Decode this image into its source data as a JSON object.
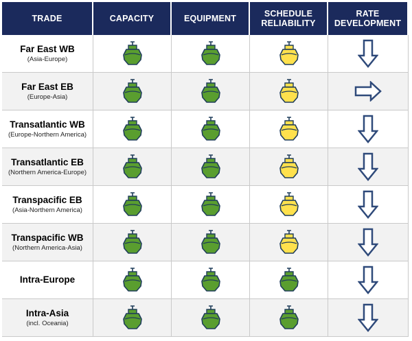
{
  "headers": {
    "trade": "TRADE",
    "capacity": "CAPACITY",
    "equipment": "EQUIPMENT",
    "schedule": "SCHEDULE RELIABILITY",
    "rate": "RATE DEVELOPMENT"
  },
  "rows": [
    {
      "name": "Far East WB",
      "sub": "(Asia-Europe)",
      "capacity": "green",
      "equipment": "green",
      "schedule": "yellow",
      "rate": "down"
    },
    {
      "name": "Far East EB",
      "sub": "(Europe-Asia)",
      "capacity": "green",
      "equipment": "green",
      "schedule": "yellow",
      "rate": "right"
    },
    {
      "name": "Transatlantic WB",
      "sub": "(Europe-Northern America)",
      "capacity": "green",
      "equipment": "green",
      "schedule": "yellow",
      "rate": "down"
    },
    {
      "name": "Transatlantic EB",
      "sub": "(Northern America-Europe)",
      "capacity": "green",
      "equipment": "green",
      "schedule": "yellow",
      "rate": "down"
    },
    {
      "name": "Transpacific EB",
      "sub": "(Asia-Northern America)",
      "capacity": "green",
      "equipment": "green",
      "schedule": "yellow",
      "rate": "down"
    },
    {
      "name": "Transpacific WB",
      "sub": "(Northern America-Asia)",
      "capacity": "green",
      "equipment": "green",
      "schedule": "yellow",
      "rate": "down"
    },
    {
      "name": "Intra-Europe",
      "sub": "",
      "capacity": "green",
      "equipment": "green",
      "schedule": "green",
      "rate": "down"
    },
    {
      "name": "Intra-Asia",
      "sub": "(incl. Oceania)",
      "capacity": "green",
      "equipment": "green",
      "schedule": "green",
      "rate": "down"
    }
  ],
  "colors": {
    "header_bg": "#1b2a5c",
    "green": "#5a9e2f",
    "yellow": "#ffe14d",
    "arrow_stroke": "#2f4a7a"
  },
  "icons": {
    "status": "ship-icon",
    "trend_down": "arrow-down-icon",
    "trend_right": "arrow-right-icon"
  }
}
